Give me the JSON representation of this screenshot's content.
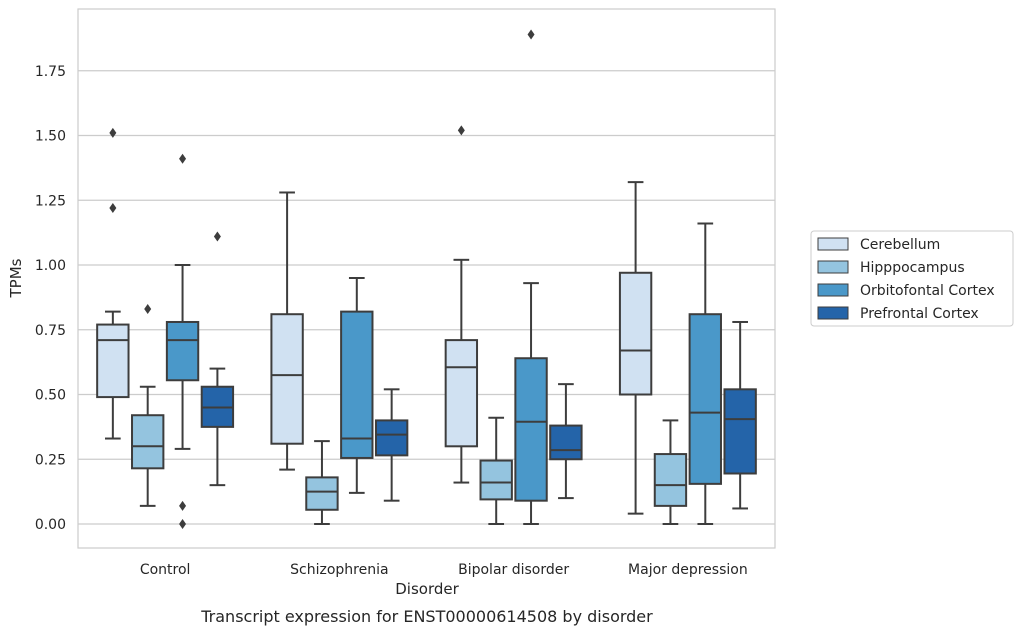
{
  "chart_data": {
    "type": "box",
    "caption": "Transcript expression for ENST00000614508 by disorder",
    "xlabel": "Disorder",
    "ylabel": "TPMs",
    "ylim": [
      -0.09,
      1.99
    ],
    "yticks": [
      0.0,
      0.25,
      0.5,
      0.75,
      1.0,
      1.25,
      1.5,
      1.75
    ],
    "ytick_labels": [
      "0.00",
      "0.25",
      "0.50",
      "0.75",
      "1.00",
      "1.25",
      "1.50",
      "1.75"
    ],
    "grid": "horizontal",
    "legend_position": "right",
    "categories": [
      "Control",
      "Schizophrenia",
      "Bipolar disorder",
      "Major depression"
    ],
    "series": [
      {
        "name": "Cerebellum",
        "color": "#d0e1f2",
        "boxes": [
          {
            "whisker_low": 0.33,
            "q1": 0.49,
            "median": 0.71,
            "q3": 0.77,
            "whisker_high": 0.82,
            "outliers": [
              1.22,
              1.51
            ]
          },
          {
            "whisker_low": 0.21,
            "q1": 0.31,
            "median": 0.575,
            "q3": 0.81,
            "whisker_high": 1.28,
            "outliers": []
          },
          {
            "whisker_low": 0.16,
            "q1": 0.3,
            "median": 0.605,
            "q3": 0.71,
            "whisker_high": 1.02,
            "outliers": [
              1.52
            ]
          },
          {
            "whisker_low": 0.04,
            "q1": 0.5,
            "median": 0.67,
            "q3": 0.97,
            "whisker_high": 1.32,
            "outliers": []
          }
        ]
      },
      {
        "name": "Hipppocampus",
        "color": "#94c4df",
        "boxes": [
          {
            "whisker_low": 0.07,
            "q1": 0.215,
            "median": 0.3,
            "q3": 0.42,
            "whisker_high": 0.53,
            "outliers": [
              0.83
            ]
          },
          {
            "whisker_low": 0.0,
            "q1": 0.055,
            "median": 0.125,
            "q3": 0.18,
            "whisker_high": 0.32,
            "outliers": []
          },
          {
            "whisker_low": 0.0,
            "q1": 0.095,
            "median": 0.16,
            "q3": 0.245,
            "whisker_high": 0.41,
            "outliers": []
          },
          {
            "whisker_low": 0.0,
            "q1": 0.07,
            "median": 0.15,
            "q3": 0.27,
            "whisker_high": 0.4,
            "outliers": []
          }
        ]
      },
      {
        "name": "Orbitofontal Cortex",
        "color": "#4a98c9",
        "boxes": [
          {
            "whisker_low": 0.29,
            "q1": 0.555,
            "median": 0.71,
            "q3": 0.78,
            "whisker_high": 1.0,
            "outliers": [
              1.41,
              0.07,
              0.0
            ]
          },
          {
            "whisker_low": 0.12,
            "q1": 0.255,
            "median": 0.33,
            "q3": 0.82,
            "whisker_high": 0.95,
            "outliers": []
          },
          {
            "whisker_low": 0.0,
            "q1": 0.09,
            "median": 0.395,
            "q3": 0.64,
            "whisker_high": 0.93,
            "outliers": [
              1.89
            ]
          },
          {
            "whisker_low": 0.0,
            "q1": 0.155,
            "median": 0.43,
            "q3": 0.81,
            "whisker_high": 1.16,
            "outliers": []
          }
        ]
      },
      {
        "name": "Prefrontal Cortex",
        "color": "#2464a9",
        "boxes": [
          {
            "whisker_low": 0.15,
            "q1": 0.375,
            "median": 0.45,
            "q3": 0.53,
            "whisker_high": 0.6,
            "outliers": [
              1.11
            ]
          },
          {
            "whisker_low": 0.09,
            "q1": 0.265,
            "median": 0.345,
            "q3": 0.4,
            "whisker_high": 0.52,
            "outliers": []
          },
          {
            "whisker_low": 0.1,
            "q1": 0.25,
            "median": 0.285,
            "q3": 0.38,
            "whisker_high": 0.54,
            "outliers": []
          },
          {
            "whisker_low": 0.06,
            "q1": 0.195,
            "median": 0.405,
            "q3": 0.52,
            "whisker_high": 0.78,
            "outliers": []
          }
        ]
      }
    ]
  }
}
